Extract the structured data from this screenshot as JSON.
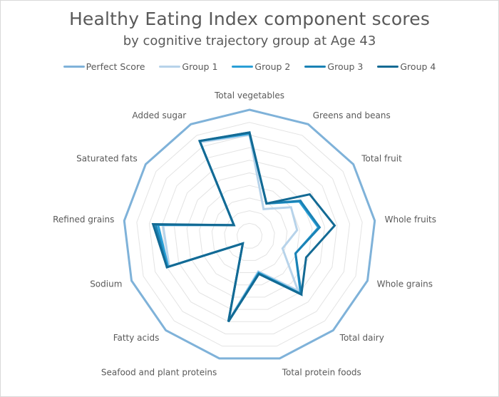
{
  "chart_data": {
    "type": "radar",
    "title": "Healthy Eating Index component scores",
    "subtitle": "by cognitive trajectory group at Age 43",
    "legend_position": "top",
    "grid": true,
    "grid_rings": 10,
    "rlim": [
      0,
      1
    ],
    "categories": [
      "Total vegetables",
      "Greens and beans",
      "Total fruit",
      "Whole fruits",
      "Whole grains",
      "Total dairy",
      "Total protein foods",
      "Seafood and plant proteins",
      "Fatty acids",
      "Sodium",
      "Refined grains",
      "Saturated fats",
      "Added sugar"
    ],
    "series": [
      {
        "name": "Perfect Score",
        "color": "#7fb2d9",
        "width": 3,
        "values": [
          1,
          1,
          1,
          1,
          1,
          1,
          1,
          1,
          1,
          1,
          1,
          1,
          1
        ]
      },
      {
        "name": "Group 1",
        "color": "#b7d3ea",
        "width": 3,
        "values": [
          0.8,
          0.24,
          0.4,
          0.38,
          0.28,
          0.58,
          0.29,
          0.69,
          0.08,
          0.68,
          0.69,
          0.15,
          0.84
        ]
      },
      {
        "name": "Group 2",
        "color": "#2a9fd6",
        "width": 3,
        "values": [
          0.81,
          0.29,
          0.48,
          0.55,
          0.39,
          0.61,
          0.3,
          0.7,
          0.08,
          0.69,
          0.73,
          0.15,
          0.85
        ]
      },
      {
        "name": "Group 3",
        "color": "#1a82b5",
        "width": 3,
        "values": [
          0.82,
          0.29,
          0.49,
          0.56,
          0.39,
          0.62,
          0.31,
          0.7,
          0.08,
          0.7,
          0.75,
          0.15,
          0.85
        ]
      },
      {
        "name": "Group 4",
        "color": "#136a94",
        "width": 3,
        "values": [
          0.82,
          0.29,
          0.58,
          0.68,
          0.48,
          0.62,
          0.31,
          0.7,
          0.08,
          0.7,
          0.77,
          0.15,
          0.85
        ]
      }
    ]
  },
  "legend": {
    "items": [
      {
        "label": "Perfect Score",
        "color": "#7fb2d9"
      },
      {
        "label": "Group 1",
        "color": "#b7d3ea"
      },
      {
        "label": "Group 2",
        "color": "#2a9fd6"
      },
      {
        "label": "Group 3",
        "color": "#1a82b5"
      },
      {
        "label": "Group 4",
        "color": "#136a94"
      }
    ]
  }
}
